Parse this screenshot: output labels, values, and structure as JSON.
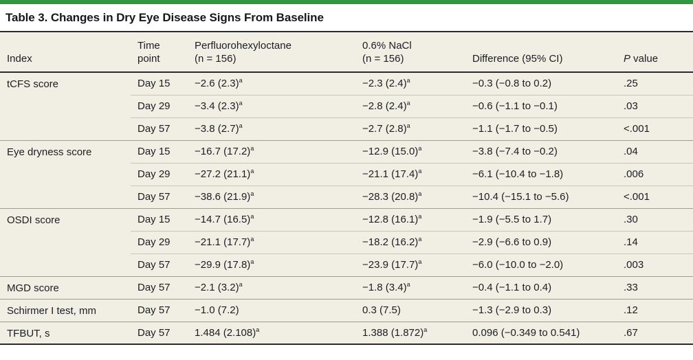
{
  "table": {
    "title": "Table 3. Changes in Dry Eye Disease Signs From Baseline",
    "accent_color": "#31963e",
    "body_background": "#f1efe3",
    "columns": {
      "index": "Index",
      "time": [
        "Time",
        "point"
      ],
      "pfh": [
        "Perfluorohexyloctane",
        "(n = 156)"
      ],
      "nacl": [
        "0.6% NaCl",
        "(n = 156)"
      ],
      "diff": "Difference (95% CI)",
      "p_italic": "P",
      "p_rest": " value"
    },
    "sections": [
      {
        "index": "tCFS score",
        "rows": [
          {
            "time": "Day 15",
            "pfh": "−2.6 (2.3)",
            "pfh_sup": "a",
            "nacl": "−2.3 (2.4)",
            "nacl_sup": "a",
            "diff": "−0.3 (−0.8 to 0.2)",
            "p": ".25"
          },
          {
            "time": "Day 29",
            "pfh": "−3.4 (2.3)",
            "pfh_sup": "a",
            "nacl": "−2.8 (2.4)",
            "nacl_sup": "a",
            "diff": "−0.6 (−1.1 to −0.1)",
            "p": ".03"
          },
          {
            "time": "Day 57",
            "pfh": "−3.8 (2.7)",
            "pfh_sup": "a",
            "nacl": "−2.7 (2.8)",
            "nacl_sup": "a",
            "diff": "−1.1 (−1.7 to −0.5)",
            "p": "<.001"
          }
        ]
      },
      {
        "index": "Eye dryness score",
        "rows": [
          {
            "time": "Day 15",
            "pfh": "−16.7 (17.2)",
            "pfh_sup": "a",
            "nacl": "−12.9 (15.0)",
            "nacl_sup": "a",
            "diff": "−3.8 (−7.4 to −0.2)",
            "p": ".04"
          },
          {
            "time": "Day 29",
            "pfh": "−27.2 (21.1)",
            "pfh_sup": "a",
            "nacl": "−21.1 (17.4)",
            "nacl_sup": "a",
            "diff": "−6.1 (−10.4 to −1.8)",
            "p": ".006"
          },
          {
            "time": "Day 57",
            "pfh": "−38.6 (21.9)",
            "pfh_sup": "a",
            "nacl": "−28.3 (20.8)",
            "nacl_sup": "a",
            "diff": "−10.4 (−15.1 to −5.6)",
            "p": "<.001"
          }
        ]
      },
      {
        "index": "OSDI score",
        "rows": [
          {
            "time": "Day 15",
            "pfh": "−14.7 (16.5)",
            "pfh_sup": "a",
            "nacl": "−12.8 (16.1)",
            "nacl_sup": "a",
            "diff": "−1.9 (−5.5 to 1.7)",
            "p": ".30"
          },
          {
            "time": "Day 29",
            "pfh": "−21.1 (17.7)",
            "pfh_sup": "a",
            "nacl": "−18.2 (16.2)",
            "nacl_sup": "a",
            "diff": "−2.9 (−6.6 to 0.9)",
            "p": ".14"
          },
          {
            "time": "Day 57",
            "pfh": "−29.9 (17.8)",
            "pfh_sup": "a",
            "nacl": "−23.9 (17.7)",
            "nacl_sup": "a",
            "diff": "−6.0 (−10.0 to −2.0)",
            "p": ".003"
          }
        ]
      },
      {
        "index": "MGD score",
        "rows": [
          {
            "time": "Day 57",
            "pfh": "−2.1 (3.2)",
            "pfh_sup": "a",
            "nacl": "−1.8 (3.4)",
            "nacl_sup": "a",
            "diff": "−0.4 (−1.1 to 0.4)",
            "p": ".33"
          }
        ]
      },
      {
        "index": "Schirmer I test, mm",
        "rows": [
          {
            "time": "Day 57",
            "pfh": "−1.0 (7.2)",
            "pfh_sup": "",
            "nacl": "0.3 (7.5)",
            "nacl_sup": "",
            "diff": "−1.3 (−2.9 to 0.3)",
            "p": ".12"
          }
        ]
      },
      {
        "index": "TFBUT, s",
        "rows": [
          {
            "time": "Day 57",
            "pfh": "1.484 (2.108)",
            "pfh_sup": "a",
            "nacl": "1.388 (1.872)",
            "nacl_sup": "a",
            "diff": "0.096 (−0.349 to 0.541)",
            "p": ".67"
          }
        ]
      }
    ]
  }
}
